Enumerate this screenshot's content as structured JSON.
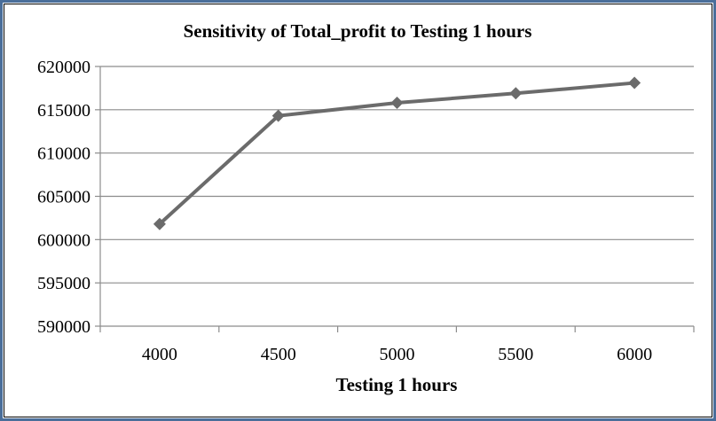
{
  "chart_data": {
    "type": "line",
    "title": "Sensitivity of Total_profit to Testing 1 hours",
    "xlabel": "Testing 1 hours",
    "ylabel": "",
    "categories": [
      "4000",
      "4500",
      "5000",
      "5500",
      "6000"
    ],
    "series": [
      {
        "values": [
          601800,
          614300,
          615800,
          616900,
          618100
        ],
        "color": "#6b6b6b",
        "marker": "diamond"
      }
    ],
    "ylim": [
      590000,
      620000
    ],
    "ytick_step": 5000,
    "yticks": [
      "590000",
      "595000",
      "600000",
      "605000",
      "610000",
      "615000",
      "620000"
    ],
    "grid": "horizontal",
    "legend": "none"
  },
  "colors": {
    "frame_border": "#4a6e9a",
    "gridline": "#8c8c8c",
    "series_line": "#6b6b6b"
  }
}
